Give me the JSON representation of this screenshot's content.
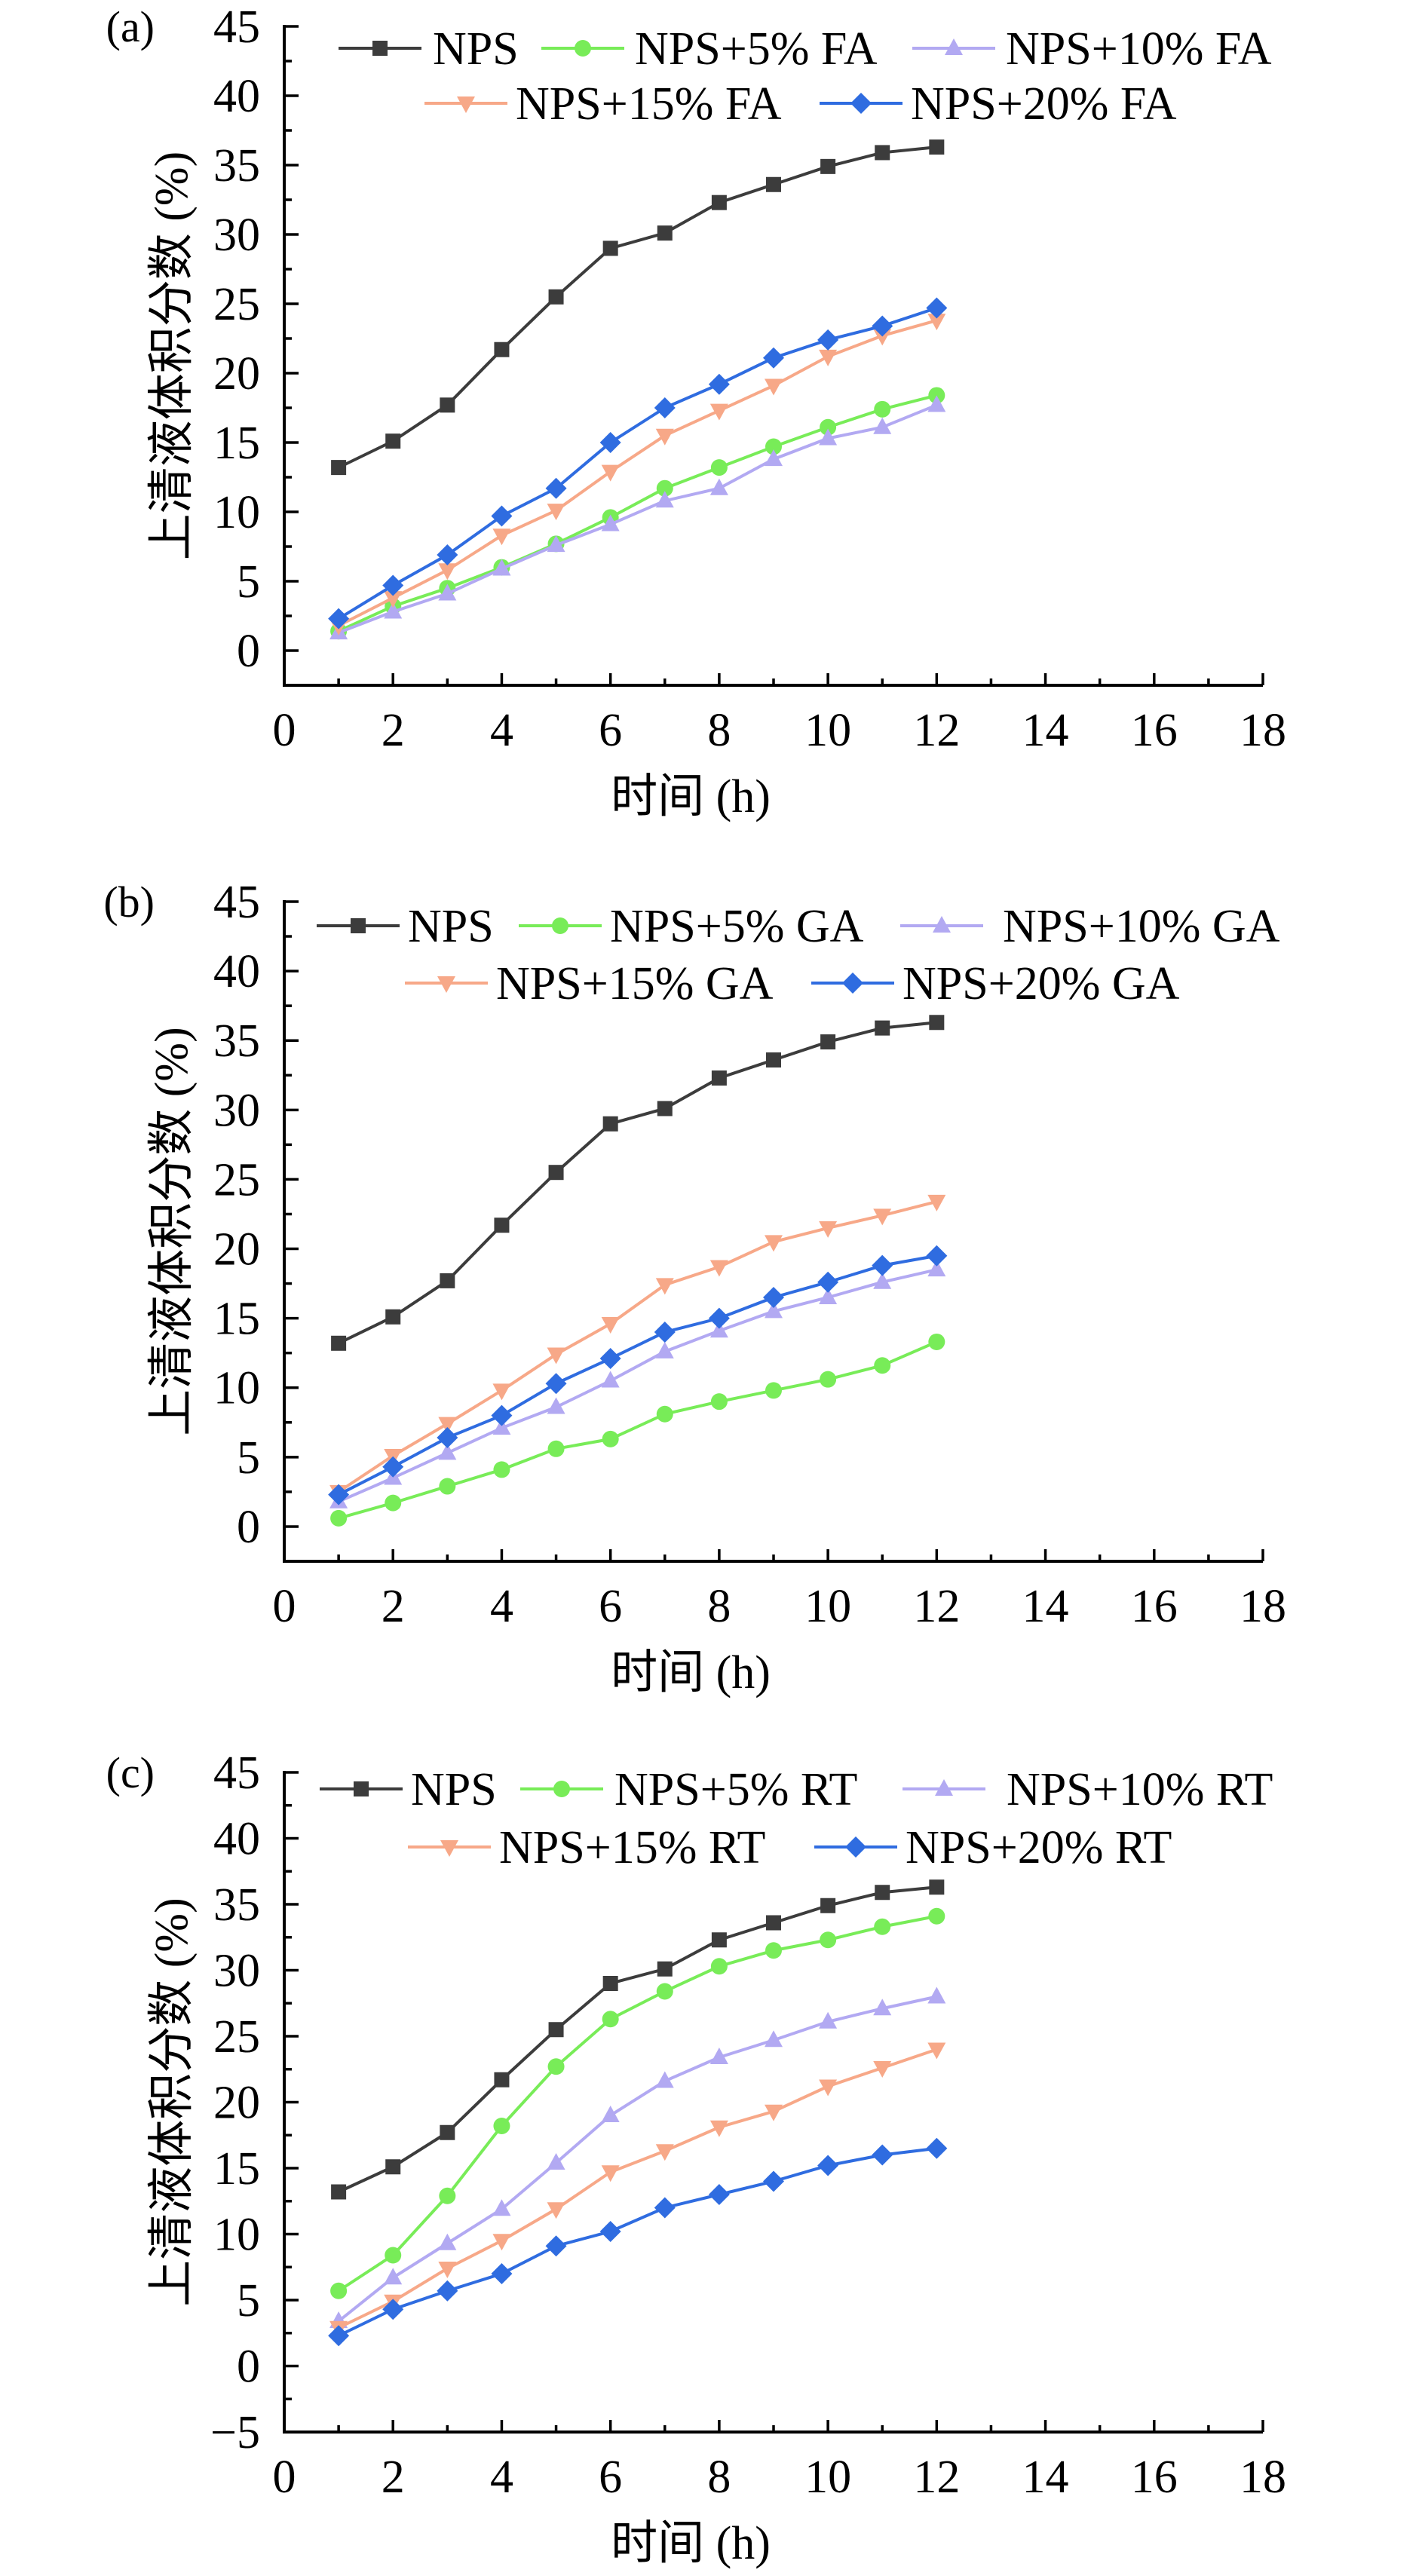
{
  "chart_data": [
    {
      "type": "line",
      "panel_label": "(a)",
      "xlabel": "时间 (h)",
      "ylabel": "上清液体积分数 (%)",
      "xlim": [
        0,
        18
      ],
      "ylim": [
        -2.5,
        45
      ],
      "xticks": [
        0,
        2,
        4,
        6,
        8,
        10,
        12,
        14,
        16,
        18
      ],
      "yticks": [
        0,
        5,
        10,
        15,
        20,
        25,
        30,
        35,
        40,
        45
      ],
      "grid": false,
      "legend_position": "top",
      "x": [
        1,
        2,
        3,
        4,
        5,
        6,
        7,
        8,
        9,
        10,
        11,
        12
      ],
      "series": [
        {
          "name": "NPS",
          "color": "#3c3c3c",
          "marker": "square",
          "values": [
            13.2,
            15.1,
            17.7,
            21.7,
            25.5,
            29.0,
            30.1,
            32.3,
            33.6,
            34.9,
            35.9,
            36.3
          ]
        },
        {
          "name": "NPS+5% FA",
          "color": "#78ec58",
          "marker": "circle",
          "values": [
            1.4,
            3.2,
            4.5,
            6.0,
            7.7,
            9.6,
            11.7,
            13.2,
            14.7,
            16.1,
            17.4,
            18.4
          ]
        },
        {
          "name": "NPS+10% FA",
          "color": "#b2a9f2",
          "marker": "triangle-up",
          "values": [
            1.3,
            2.8,
            4.1,
            5.9,
            7.6,
            9.1,
            10.8,
            11.7,
            13.8,
            15.3,
            16.1,
            17.7
          ]
        },
        {
          "name": "NPS+15% FA",
          "color": "#f7a888",
          "marker": "triangle-down",
          "values": [
            1.8,
            3.8,
            5.8,
            8.3,
            10.1,
            12.9,
            15.5,
            17.3,
            19.1,
            21.2,
            22.7,
            23.8
          ]
        },
        {
          "name": "NPS+20% FA",
          "color": "#2f6ce0",
          "marker": "diamond",
          "values": [
            2.3,
            4.7,
            6.9,
            9.7,
            11.7,
            15.0,
            17.5,
            19.2,
            21.1,
            22.4,
            23.4,
            24.7
          ]
        }
      ]
    },
    {
      "type": "line",
      "panel_label": "(b)",
      "xlabel": "时间 (h)",
      "ylabel": "上清液体积分数 (%)",
      "xlim": [
        0,
        18
      ],
      "ylim": [
        -2.5,
        45
      ],
      "xticks": [
        0,
        2,
        4,
        6,
        8,
        10,
        12,
        14,
        16,
        18
      ],
      "yticks": [
        0,
        5,
        10,
        15,
        20,
        25,
        30,
        35,
        40,
        45
      ],
      "grid": false,
      "legend_position": "top",
      "x": [
        1,
        2,
        3,
        4,
        5,
        6,
        7,
        8,
        9,
        10,
        11,
        12
      ],
      "series": [
        {
          "name": "NPS",
          "color": "#3c3c3c",
          "marker": "square",
          "values": [
            13.2,
            15.1,
            17.7,
            21.7,
            25.5,
            29.0,
            30.1,
            32.3,
            33.6,
            34.9,
            35.9,
            36.3
          ]
        },
        {
          "name": "NPS+5% GA",
          "color": "#78ec58",
          "marker": "circle",
          "values": [
            0.6,
            1.7,
            2.9,
            4.1,
            5.6,
            6.3,
            8.1,
            9.0,
            9.8,
            10.6,
            11.6,
            13.3
          ]
        },
        {
          "name": "NPS+10% GA",
          "color": "#b2a9f2",
          "marker": "triangle-up",
          "values": [
            1.8,
            3.5,
            5.3,
            7.1,
            8.6,
            10.5,
            12.6,
            14.1,
            15.5,
            16.5,
            17.6,
            18.5
          ]
        },
        {
          "name": "NPS+15% GA",
          "color": "#f7a888",
          "marker": "triangle-down",
          "values": [
            2.5,
            5.1,
            7.4,
            9.8,
            12.4,
            14.6,
            17.4,
            18.7,
            20.5,
            21.5,
            22.4,
            23.4
          ]
        },
        {
          "name": "NPS+20% GA",
          "color": "#2f6ce0",
          "marker": "diamond",
          "values": [
            2.3,
            4.3,
            6.4,
            8.0,
            10.3,
            12.1,
            14.0,
            15.0,
            16.5,
            17.6,
            18.8,
            19.5
          ]
        }
      ]
    },
    {
      "type": "line",
      "panel_label": "(c)",
      "xlabel": "时间 (h)",
      "ylabel": "上清液体积分数 (%)",
      "xlim": [
        0,
        18
      ],
      "ylim": [
        -5,
        45
      ],
      "xticks": [
        0,
        2,
        4,
        6,
        8,
        10,
        12,
        14,
        16,
        18
      ],
      "yticks": [
        -5,
        0,
        5,
        10,
        15,
        20,
        25,
        30,
        35,
        40,
        45
      ],
      "grid": false,
      "legend_position": "top",
      "x": [
        1,
        2,
        3,
        4,
        5,
        6,
        7,
        8,
        9,
        10,
        11,
        12
      ],
      "series": [
        {
          "name": "NPS",
          "color": "#3c3c3c",
          "marker": "square",
          "values": [
            13.2,
            15.1,
            17.7,
            21.7,
            25.5,
            29.0,
            30.1,
            32.3,
            33.6,
            34.9,
            35.9,
            36.3
          ]
        },
        {
          "name": "NPS+5% RT",
          "color": "#78ec58",
          "marker": "circle",
          "values": [
            5.7,
            8.4,
            12.9,
            18.2,
            22.7,
            26.3,
            28.4,
            30.3,
            31.5,
            32.3,
            33.3,
            34.1
          ]
        },
        {
          "name": "NPS+10% RT",
          "color": "#b2a9f2",
          "marker": "triangle-up",
          "values": [
            3.4,
            6.7,
            9.3,
            11.9,
            15.4,
            19.0,
            21.6,
            23.4,
            24.7,
            26.1,
            27.1,
            28.0
          ]
        },
        {
          "name": "NPS+15% RT",
          "color": "#f7a888",
          "marker": "triangle-down",
          "values": [
            2.9,
            4.9,
            7.4,
            9.5,
            11.9,
            14.7,
            16.3,
            18.1,
            19.3,
            21.2,
            22.6,
            24.0
          ]
        },
        {
          "name": "NPS+20% RT",
          "color": "#2f6ce0",
          "marker": "diamond",
          "values": [
            2.3,
            4.3,
            5.7,
            7.0,
            9.1,
            10.2,
            12.0,
            13.0,
            14.0,
            15.2,
            16.0,
            16.5
          ]
        }
      ]
    }
  ]
}
